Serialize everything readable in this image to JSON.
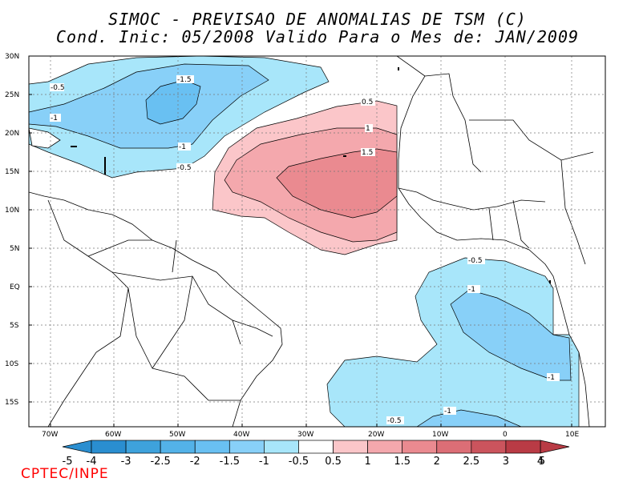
{
  "title_line1": "SIMOC - PREVISAO DE ANOMALIAS DE TSM (C)",
  "title_line2": "Cond. Inic: 05/2008   Valido Para o Mes de: JAN/2009",
  "lat_labels": [
    "30N",
    "25N",
    "20N",
    "15N",
    "10N",
    "5N",
    "EQ",
    "5S",
    "10S",
    "15S"
  ],
  "lon_labels": [
    "70W",
    "60W",
    "50W",
    "40W",
    "30W",
    "20W",
    "10W",
    "0",
    "10E"
  ],
  "contour_labels": [
    "-0.5",
    "-1.5",
    "-1",
    "-1",
    "-0.5",
    "0.5",
    "1",
    "1.5",
    "-0.5",
    "-1",
    "-1",
    "-1",
    "-0.5"
  ],
  "colorbar": {
    "labels": [
      "-5",
      "-4",
      "-3",
      "-2.5",
      "-2",
      "-1.5",
      "-1",
      "-0.5",
      "0.5",
      "1",
      "1.5",
      "2",
      "2.5",
      "3",
      "4",
      "5"
    ],
    "colors": [
      "#2a8ed0",
      "#3ea2dc",
      "#53b2e8",
      "#69c0f2",
      "#88d0f8",
      "#a8e6fa",
      "#ffffff",
      "#fbc6c9",
      "#f4a8ad",
      "#ea8a90",
      "#dc6e76",
      "#cb545d",
      "#b93b45"
    ]
  },
  "footer": "CPTEC/INPE"
}
